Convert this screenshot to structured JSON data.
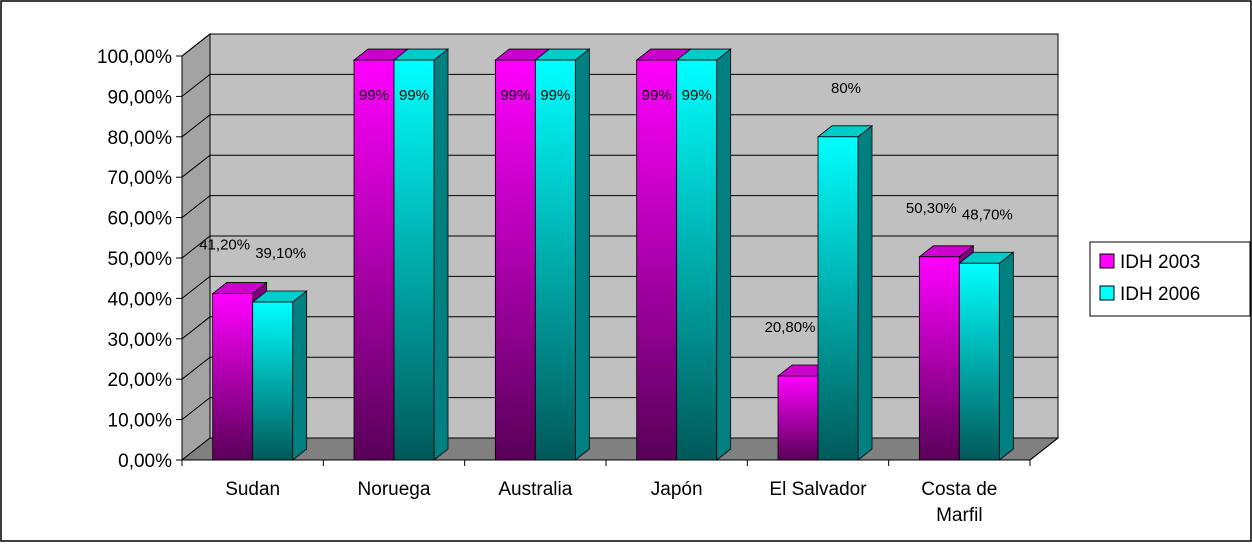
{
  "chart_data": {
    "type": "bar",
    "categories": [
      "Sudan",
      "Noruega",
      "Australia",
      "Japón",
      "El Salvador",
      "Costa de Marfil"
    ],
    "category_lines": [
      [
        "Sudan"
      ],
      [
        "Noruega"
      ],
      [
        "Australia"
      ],
      [
        "Japón"
      ],
      [
        "El Salvador"
      ],
      [
        "Costa de",
        "Marfil"
      ]
    ],
    "series": [
      {
        "name": "IDH 2003",
        "values": [
          41.2,
          99,
          99,
          99,
          20.8,
          50.3
        ],
        "labels": [
          "41,20%",
          "99%",
          "99%",
          "99%",
          "20,80%",
          "50,30%"
        ],
        "color": "#ff00ff"
      },
      {
        "name": "IDH 2006",
        "values": [
          39.1,
          99,
          99,
          99,
          80,
          48.7
        ],
        "labels": [
          "39,10%",
          "99%",
          "99%",
          "99%",
          "80%",
          "48,70%"
        ],
        "color": "#00ffff"
      }
    ],
    "yticks": [
      "0,00%",
      "10,00%",
      "20,00%",
      "30,00%",
      "40,00%",
      "50,00%",
      "60,00%",
      "70,00%",
      "80,00%",
      "90,00%",
      "100,00%"
    ],
    "ylim": [
      0,
      100
    ],
    "grid": true,
    "three_d": true,
    "legend_position": "right",
    "wall_color": "#c0c0c0",
    "floor_color": "#808080"
  }
}
